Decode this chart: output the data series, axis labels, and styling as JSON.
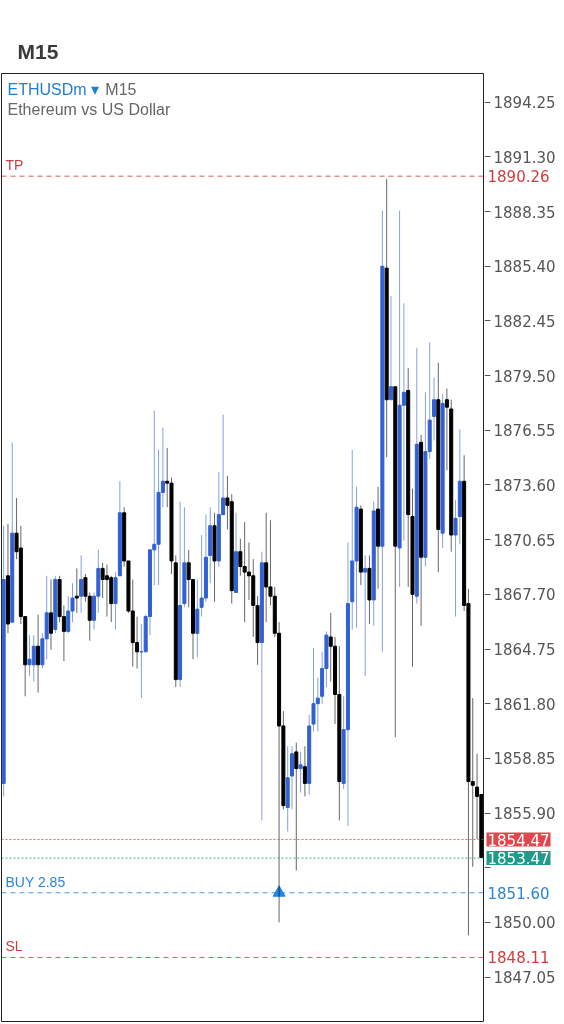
{
  "chart_data": {
    "type": "candlestick",
    "title": "ETHUSDm ▾",
    "subtitle": "Ethereum vs US Dollar",
    "annotations": [
      "M15",
      "M15",
      "1890.26",
      "1854.47",
      "1853.47",
      "1851.60",
      "1848.11"
    ],
    "categories": [
      null,
      null,
      null,
      null,
      null,
      null,
      null,
      null,
      null,
      null,
      null,
      null,
      null,
      null,
      null,
      null,
      null,
      null,
      null,
      null,
      null,
      null,
      null,
      null,
      null,
      null,
      null,
      null,
      null,
      null,
      null,
      null,
      null,
      null,
      null,
      null,
      null,
      null,
      null,
      null,
      null,
      null,
      null,
      null,
      null,
      null,
      null,
      null,
      null,
      null,
      null,
      null,
      null,
      null,
      null,
      null,
      null,
      null,
      null,
      null,
      null,
      null,
      null,
      null,
      null,
      null,
      null,
      null,
      null,
      null,
      null,
      null,
      null,
      null,
      null,
      null,
      null,
      null,
      null,
      null,
      null,
      null,
      null,
      null,
      null,
      null,
      null,
      null,
      null,
      null,
      null,
      null,
      null,
      null,
      null,
      null,
      null,
      null,
      null,
      null,
      null,
      null,
      null,
      null,
      null,
      null,
      null,
      null,
      null,
      null,
      null,
      null
    ],
    "ohlc": [
      [
        1857.5,
        1871.4,
        1856.8,
        1868.5
      ],
      [
        1868.7,
        1871.5,
        1865.6,
        1866.1
      ],
      [
        1866.2,
        1875.9,
        1866.2,
        1871.0
      ],
      [
        1871.0,
        1872.9,
        1869.6,
        1870.0
      ],
      [
        1870.2,
        1871.4,
        1866.1,
        1866.5
      ],
      [
        1866.5,
        1866.5,
        1862.2,
        1863.9
      ],
      [
        1863.9,
        1865.5,
        1863.3,
        1864.2
      ],
      [
        1863.9,
        1865.5,
        1863.0,
        1864.9
      ],
      [
        1864.9,
        1866.6,
        1862.4,
        1863.9
      ],
      [
        1863.9,
        1865.6,
        1863.7,
        1865.3
      ],
      [
        1865.3,
        1868.7,
        1864.2,
        1866.7
      ],
      [
        1866.7,
        1868.5,
        1864.7,
        1865.6
      ],
      [
        1865.8,
        1868.7,
        1865.6,
        1868.5
      ],
      [
        1868.5,
        1868.7,
        1866.2,
        1866.5
      ],
      [
        1866.5,
        1867.1,
        1864.1,
        1865.7
      ],
      [
        1865.7,
        1867.6,
        1865.6,
        1866.8
      ],
      [
        1866.8,
        1868.3,
        1866.2,
        1867.5
      ],
      [
        1867.6,
        1869.1,
        1866.7,
        1867.5
      ],
      [
        1867.6,
        1869.8,
        1866.7,
        1868.5
      ],
      [
        1868.6,
        1868.8,
        1867.3,
        1867.6
      ],
      [
        1867.6,
        1867.8,
        1865.2,
        1866.3
      ],
      [
        1866.3,
        1867.8,
        1865.8,
        1867.6
      ],
      [
        1867.6,
        1870.1,
        1866.7,
        1869.1
      ],
      [
        1869.1,
        1869.4,
        1867.5,
        1868.5
      ],
      [
        1868.7,
        1869.3,
        1866.5,
        1868.5
      ],
      [
        1868.6,
        1868.7,
        1866.2,
        1867.2
      ],
      [
        1867.2,
        1868.9,
        1865.8,
        1868.6
      ],
      [
        1868.7,
        1873.8,
        1868.7,
        1872.1
      ],
      [
        1872.1,
        1872.4,
        1869.2,
        1869.5
      ],
      [
        1869.5,
        1869.5,
        1866.7,
        1866.8
      ],
      [
        1866.8,
        1868.5,
        1863.8,
        1865.1
      ],
      [
        1865.1,
        1866.5,
        1863.7,
        1864.6
      ],
      [
        1864.6,
        1866.1,
        1862.1,
        1864.6
      ],
      [
        1864.6,
        1866.6,
        1864.6,
        1866.5
      ],
      [
        1866.5,
        1870.1,
        1865.5,
        1870.1
      ],
      [
        1870.1,
        1877.6,
        1868.2,
        1870.4
      ],
      [
        1870.4,
        1875.5,
        1868.2,
        1873.2
      ],
      [
        1873.2,
        1876.7,
        1872.4,
        1873.8
      ],
      [
        1873.8,
        1875.6,
        1872.4,
        1873.7
      ],
      [
        1873.7,
        1874.0,
        1868.8,
        1869.5
      ],
      [
        1869.4,
        1869.8,
        1862.7,
        1863.1
      ],
      [
        1863.1,
        1872.7,
        1862.7,
        1867.1
      ],
      [
        1867.2,
        1872.4,
        1867.0,
        1869.4
      ],
      [
        1869.4,
        1870.1,
        1867.0,
        1868.5
      ],
      [
        1868.5,
        1868.5,
        1864.2,
        1865.6
      ],
      [
        1865.6,
        1868.5,
        1864.3,
        1866.9
      ],
      [
        1867.0,
        1870.9,
        1866.5,
        1867.5
      ],
      [
        1867.5,
        1872.0,
        1867.3,
        1869.7
      ],
      [
        1869.8,
        1872.4,
        1868.3,
        1871.4
      ],
      [
        1871.4,
        1872.1,
        1867.3,
        1869.5
      ],
      [
        1869.5,
        1874.3,
        1869.2,
        1872.0
      ],
      [
        1872.0,
        1877.4,
        1872.0,
        1872.9
      ],
      [
        1872.9,
        1874.1,
        1871.2,
        1872.5
      ],
      [
        1872.7,
        1873.1,
        1867.2,
        1867.9
      ],
      [
        1867.8,
        1872.1,
        1867.8,
        1870.0
      ],
      [
        1870.0,
        1870.7,
        1868.7,
        1869.2
      ],
      [
        1869.2,
        1871.6,
        1866.2,
        1868.9
      ],
      [
        1868.9,
        1870.5,
        1867.4,
        1868.7
      ],
      [
        1868.7,
        1869.6,
        1865.4,
        1867.1
      ],
      [
        1867.1,
        1867.6,
        1863.9,
        1865.1
      ],
      [
        1865.1,
        1870.0,
        1855.5,
        1869.4
      ],
      [
        1869.4,
        1872.1,
        1866.2,
        1868.1
      ],
      [
        1868.1,
        1871.7,
        1867.1,
        1867.6
      ],
      [
        1867.6,
        1868.1,
        1865.4,
        1865.6
      ],
      [
        1865.6,
        1866.2,
        1850.0,
        1860.6
      ],
      [
        1860.6,
        1861.4,
        1856.1,
        1856.3
      ],
      [
        1856.2,
        1859.5,
        1854.9,
        1857.8
      ],
      [
        1857.9,
        1859.5,
        1856.1,
        1859.1
      ],
      [
        1859.2,
        1859.7,
        1852.8,
        1858.3
      ],
      [
        1858.3,
        1859.2,
        1857.0,
        1858.5
      ],
      [
        1858.4,
        1859.5,
        1856.8,
        1857.5
      ],
      [
        1857.5,
        1861.2,
        1856.9,
        1860.6
      ],
      [
        1860.7,
        1864.8,
        1860.3,
        1861.8
      ],
      [
        1861.8,
        1863.2,
        1860.3,
        1862.1
      ],
      [
        1862.2,
        1864.6,
        1861.8,
        1863.7
      ],
      [
        1863.7,
        1865.7,
        1862.7,
        1865.5
      ],
      [
        1865.4,
        1866.7,
        1863.0,
        1864.9
      ],
      [
        1864.9,
        1865.4,
        1860.7,
        1862.3
      ],
      [
        1862.3,
        1864.9,
        1855.5,
        1857.6
      ],
      [
        1857.5,
        1862.2,
        1857.2,
        1860.4
      ],
      [
        1860.4,
        1870.5,
        1855.2,
        1867.2
      ],
      [
        1867.3,
        1875.5,
        1865.8,
        1869.5
      ],
      [
        1869.5,
        1873.5,
        1865.9,
        1872.4
      ],
      [
        1872.3,
        1872.5,
        1868.2,
        1868.9
      ],
      [
        1868.9,
        1869.8,
        1863.3,
        1869.1
      ],
      [
        1869.1,
        1869.8,
        1866.1,
        1867.4
      ],
      [
        1867.4,
        1872.7,
        1866.0,
        1872.2
      ],
      [
        1872.3,
        1873.5,
        1868.0,
        1870.3
      ],
      [
        1870.3,
        1888.4,
        1864.6,
        1885.4
      ],
      [
        1885.3,
        1890.1,
        1875.1,
        1878.2
      ],
      [
        1878.2,
        1883.8,
        1878.2,
        1878.9
      ],
      [
        1878.9,
        1878.9,
        1860.0,
        1870.3
      ],
      [
        1870.2,
        1888.4,
        1868.1,
        1877.9
      ],
      [
        1877.9,
        1883.4,
        1870.6,
        1878.6
      ],
      [
        1878.7,
        1879.9,
        1868.1,
        1872.0
      ],
      [
        1871.9,
        1873.4,
        1863.8,
        1867.7
      ],
      [
        1867.6,
        1881.0,
        1867.2,
        1875.8
      ],
      [
        1875.9,
        1876.3,
        1866.0,
        1869.7
      ],
      [
        1869.7,
        1878.6,
        1869.2,
        1875.4
      ],
      [
        1875.4,
        1881.3,
        1875.0,
        1877.1
      ],
      [
        1877.3,
        1879.4,
        1876.0,
        1878.2
      ],
      [
        1878.2,
        1880.2,
        1868.9,
        1871.2
      ],
      [
        1871.0,
        1878.5,
        1870.2,
        1878.0
      ],
      [
        1878.2,
        1878.8,
        1874.4,
        1877.8
      ],
      [
        1877.7,
        1878.2,
        1870.0,
        1870.9
      ],
      [
        1870.9,
        1872.8,
        1866.5,
        1871.8
      ],
      [
        1871.9,
        1876.6,
        1870.4,
        1873.8
      ],
      [
        1873.8,
        1875.2,
        1866.8,
        1867.1
      ],
      [
        1867.2,
        1868.0,
        1849.3,
        1857.6
      ],
      [
        1857.6,
        1862.1,
        1853.0,
        1857.4
      ],
      [
        1857.3,
        1859.1,
        1854.5,
        1856.8
      ],
      [
        1856.9,
        1856.9,
        1853.5,
        1853.5
      ]
    ],
    "colors": [
      "#3160d2",
      "#000000",
      "#3160d2",
      "#000000",
      "#000000",
      "#000000",
      "#3160d2",
      "#3160d2",
      "#000000",
      "#3160d2",
      "#3160d2",
      "#000000",
      "#3160d2",
      "#000000",
      "#000000",
      "#3160d2",
      "#3160d2",
      "#000000",
      "#3160d2",
      "#000000",
      "#000000",
      "#3160d2",
      "#3160d2",
      "#000000",
      "#000000",
      "#000000",
      "#3160d2",
      "#3160d2",
      "#000000",
      "#000000",
      "#000000",
      "#000000",
      "#3160d2",
      "#3160d2",
      "#3160d2",
      "#3160d2",
      "#3160d2",
      "#3160d2",
      "#000000",
      "#000000",
      "#000000",
      "#3160d2",
      "#3160d2",
      "#000000",
      "#000000",
      "#3160d2",
      "#3160d2",
      "#3160d2",
      "#3160d2",
      "#000000",
      "#3160d2",
      "#3160d2",
      "#000000",
      "#000000",
      "#3160d2",
      "#000000",
      "#000000",
      "#000000",
      "#000000",
      "#000000",
      "#3160d2",
      "#000000",
      "#000000",
      "#000000",
      "#000000",
      "#000000",
      "#3160d2",
      "#3160d2",
      "#000000",
      "#3160d2",
      "#000000",
      "#3160d2",
      "#3160d2",
      "#3160d2",
      "#3160d2",
      "#3160d2",
      "#000000",
      "#000000",
      "#000000",
      "#3160d2",
      "#3160d2",
      "#3160d2",
      "#3160d2",
      "#000000",
      "#3160d2",
      "#000000",
      "#3160d2",
      "#000000",
      "#3160d2",
      "#000000",
      "#3160d2",
      "#000000",
      "#3160d2",
      "#3160d2",
      "#000000",
      "#000000",
      "#3160d2",
      "#000000",
      "#3160d2",
      "#3160d2",
      "#3160d2",
      "#000000",
      "#3160d2",
      "#000000",
      "#000000",
      "#3160d2",
      "#3160d2",
      "#000000",
      "#000000",
      "#000000",
      "#000000",
      "#000000"
    ],
    "series": [
      {
        "type": "scatter",
        "marker": "triangle",
        "color": "#1e88e5",
        "values": [
          null,
          null,
          null,
          null,
          null,
          null,
          null,
          null,
          null,
          null,
          null,
          null,
          null,
          null,
          null,
          null,
          null,
          null,
          null,
          null,
          null,
          null,
          null,
          null,
          null,
          null,
          null,
          null,
          null,
          null,
          null,
          null,
          null,
          null,
          null,
          null,
          null,
          null,
          null,
          null,
          null,
          null,
          null,
          null,
          null,
          null,
          null,
          null,
          null,
          null,
          null,
          null,
          null,
          null,
          null,
          null,
          null,
          null,
          null,
          null,
          null,
          null,
          null,
          null,
          1851.6,
          null,
          null,
          null,
          null,
          null,
          null,
          null,
          null,
          null,
          null,
          null,
          null,
          null,
          null,
          null,
          null,
          null,
          null,
          null,
          null,
          null,
          null,
          null,
          null,
          null,
          null,
          null,
          null,
          null,
          null,
          null,
          null,
          null,
          null,
          null,
          null,
          null,
          null,
          null,
          null,
          null,
          null,
          null,
          null,
          null,
          null,
          null
        ]
      }
    ],
    "ylim": [
      1844.6,
      1895.8
    ],
    "yticks": [
      1894.25,
      {
        "value": 1891.3,
        "label": "1891.30"
      },
      1888.35,
      {
        "value": 1885.4,
        "label": "1885.40"
      },
      1882.45,
      {
        "value": 1879.5,
        "label": "1879.50"
      },
      1876.55,
      {
        "value": 1873.6,
        "label": "1873.60"
      },
      1870.65,
      {
        "value": 1867.7,
        "label": "1867.70"
      },
      1864.75,
      {
        "value": 1861.8,
        "label": "1861.80"
      },
      1858.85,
      {
        "value": 1855.9,
        "label": "1855.90"
      },
      {
        "value": 1852.95,
        "label": null
      },
      {
        "value": 1850,
        "label": "1850.00"
      },
      1847.05
    ],
    "tick_labels": "y",
    "ref_lines": [
      {
        "axis": "y",
        "value": 1890.26,
        "label": "TP",
        "color": "#d23c3c",
        "line_style": "dashed"
      },
      {
        "axis": "y",
        "value": 1854.47,
        "color": "#e0474c",
        "line_style": "dotted"
      },
      {
        "axis": "y",
        "value": 1853.47,
        "color": "#1f9b8a",
        "line_style": "dotted"
      },
      {
        "axis": "y",
        "value": 1851.6,
        "label": "BUY 2.85",
        "color": "#2a86d8",
        "line_style": "dashed"
      },
      {
        "axis": "y",
        "value": 1848.11,
        "label": "SL",
        "color": "#d23c3c",
        "line_style": "dashed"
      }
    ]
  }
}
